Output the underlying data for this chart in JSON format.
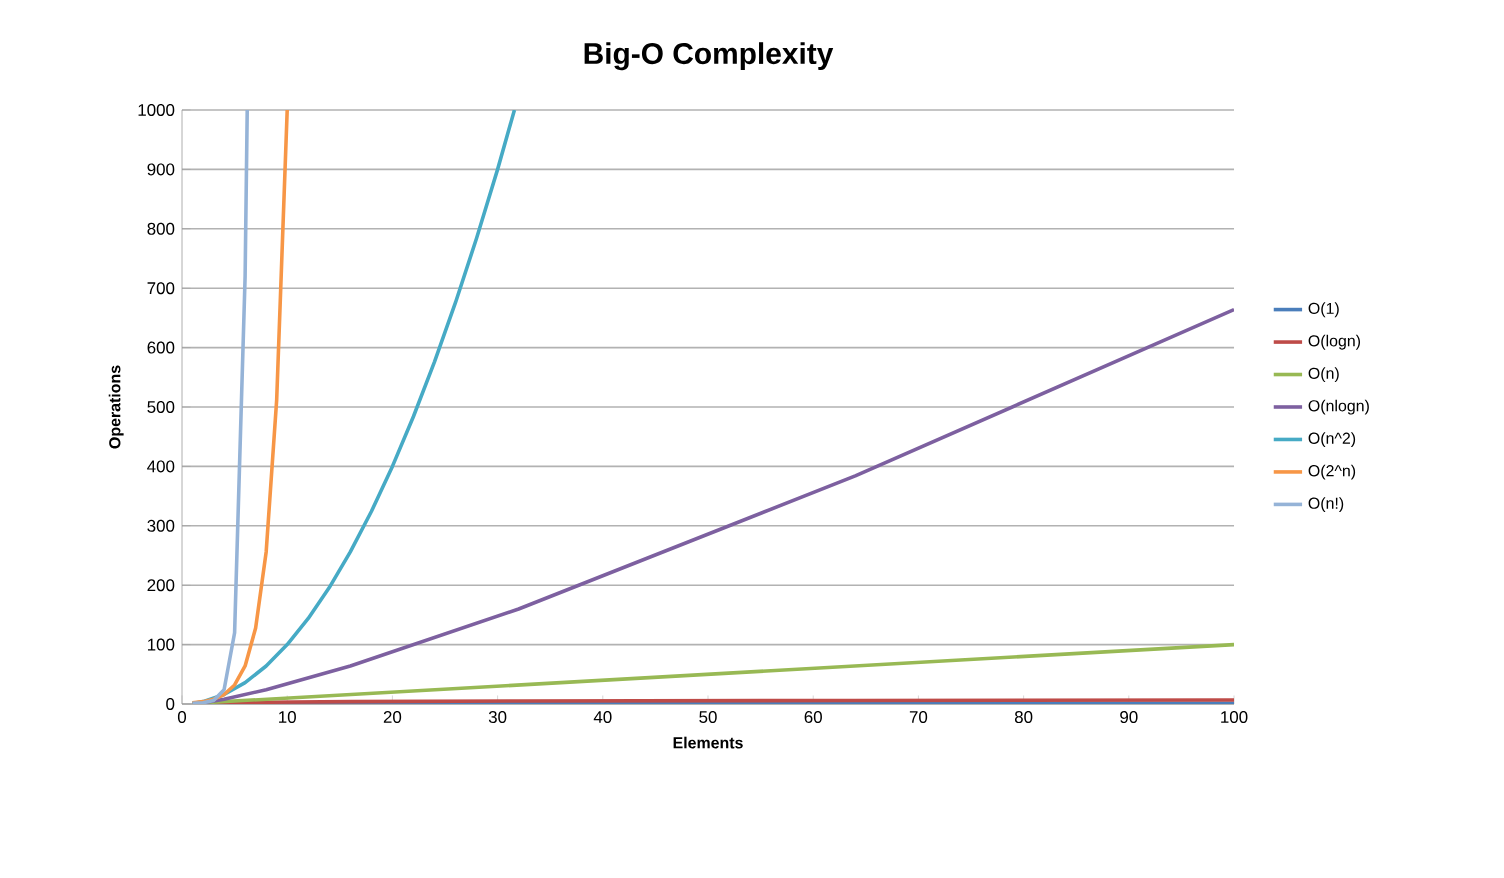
{
  "chart_data": {
    "type": "line",
    "title": "Big-O Complexity",
    "xlabel": "Elements",
    "ylabel": "Operations",
    "xlim": [
      0,
      100
    ],
    "xticks": [
      0,
      10,
      20,
      30,
      40,
      50,
      60,
      70,
      80,
      90,
      100
    ],
    "ylim": [
      0,
      1000
    ],
    "yticks": [
      0,
      100,
      200,
      300,
      400,
      500,
      600,
      700,
      800,
      900,
      1000
    ],
    "grid": "y",
    "legend": "right",
    "marker": "none",
    "line_style": "solid",
    "series": [
      {
        "name": "O(1)",
        "color": "#4a7ebb",
        "x": [
          1,
          100
        ],
        "values": [
          1,
          1
        ]
      },
      {
        "name": "O(logn)",
        "color": "#be4b48",
        "x": [
          1,
          2,
          4,
          8,
          16,
          32,
          64,
          100
        ],
        "values": [
          0,
          1,
          2,
          3,
          4,
          5,
          6,
          6.6
        ]
      },
      {
        "name": "O(n)",
        "color": "#98b954",
        "x": [
          1,
          100
        ],
        "values": [
          1,
          100
        ]
      },
      {
        "name": "O(nlogn)",
        "color": "#7d60a0",
        "x": [
          1,
          2,
          4,
          8,
          16,
          32,
          64,
          100
        ],
        "values": [
          0,
          2,
          8,
          24,
          64,
          160,
          384,
          664
        ]
      },
      {
        "name": "O(n^2)",
        "color": "#46aac5",
        "x": [
          1,
          2,
          4,
          6,
          8,
          10,
          12,
          14,
          16,
          18,
          20,
          22,
          24,
          26,
          28,
          30,
          31.6
        ],
        "values": [
          1,
          4,
          16,
          36,
          64,
          100,
          144,
          196,
          256,
          324,
          400,
          484,
          576,
          676,
          784,
          900,
          1000
        ]
      },
      {
        "name": "O(2^n)",
        "color": "#f79646",
        "x": [
          1,
          2,
          3,
          4,
          5,
          6,
          7,
          8,
          9,
          10
        ],
        "values": [
          2,
          4,
          8,
          16,
          32,
          64,
          128,
          256,
          512,
          1000
        ]
      },
      {
        "name": "O(n!)",
        "color": "#95b3d7",
        "x": [
          1,
          2,
          3,
          4,
          5,
          6,
          6.2
        ],
        "values": [
          1,
          2,
          6,
          24,
          120,
          720,
          1000
        ]
      }
    ]
  }
}
